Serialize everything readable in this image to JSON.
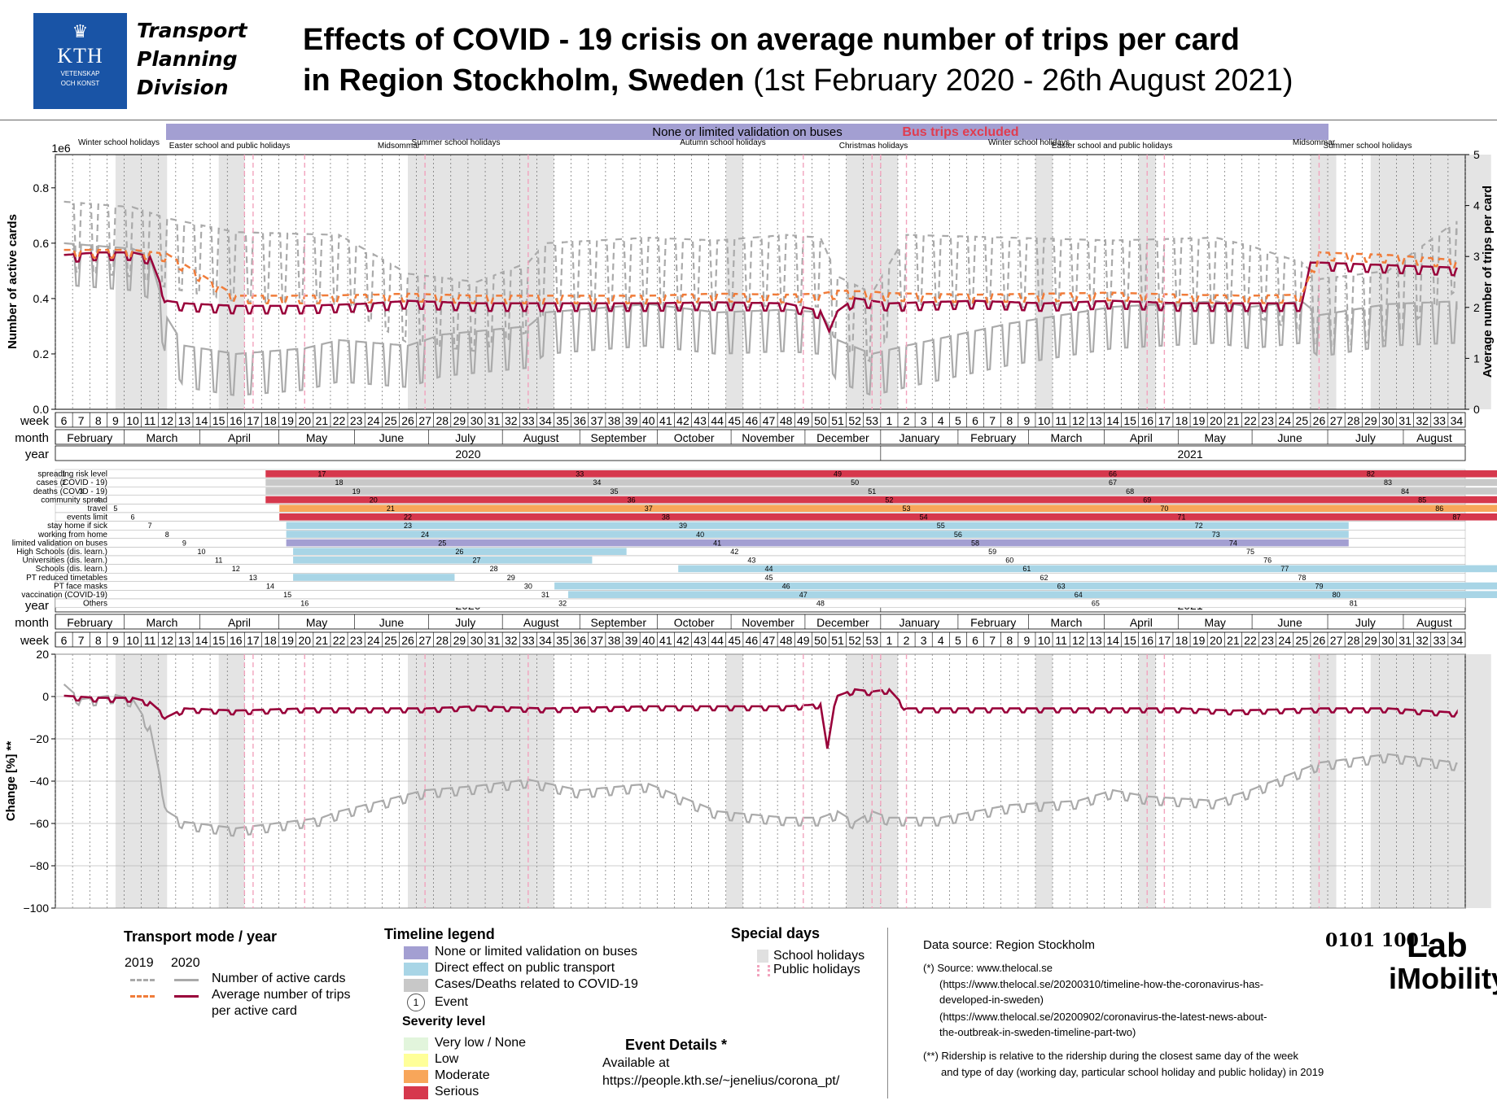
{
  "header": {
    "logo_text": "KTH",
    "logo_sub1": "VETENSKAP",
    "logo_sub2": "OCH KONST",
    "division_line1": "Transport",
    "division_line2": "Planning",
    "division_line3": "Division",
    "title_line1": "Effects of COVID - 19 crisis on average number of trips per card",
    "title_line2_bold": "in Region Stockholm, Sweden",
    "title_line2_dates": "(1st February 2020 - 26th August 2021)"
  },
  "banner": {
    "label": "None or limited validation on buses",
    "bus_excluded": "Bus trips excluded",
    "color": "#a39fd2",
    "alert_color": "#e03c4f"
  },
  "colors": {
    "cards_2020": "#aaaaaa",
    "cards_2019": "#aaaaaa",
    "trips_2020": "#99003a",
    "trips_2019": "#f07c3a",
    "school_holiday": "#e4e4e4",
    "public_holiday": "#f2a3bd",
    "limited_validation": "#a39fd2",
    "direct_effect": "#a8d5e6",
    "cases": "#c8c8c8",
    "very_low": "#e2f5dc",
    "low": "#ffff99",
    "moderate": "#f8a65a",
    "serious": "#d6384d"
  },
  "chart_data": [
    {
      "type": "line",
      "title": "",
      "ylabel": "Number of active cards",
      "ylabel_scale": "1e6",
      "ylim": [
        0,
        0.92
      ],
      "yticks": [
        "0.0",
        "0.2",
        "0.4",
        "0.6",
        "0.8"
      ],
      "y2label": "Average number of trips per card",
      "y2lim": [
        0,
        5
      ],
      "y2ticks": [
        "0",
        "1",
        "2",
        "3",
        "4",
        "5"
      ],
      "grid": false,
      "x_unit": "week",
      "series": [
        {
          "name": "Number of active cards",
          "year": "2020",
          "style": "solid",
          "axis": "left",
          "points": [
            [
              6,
              0.57
            ],
            [
              8,
              0.56
            ],
            [
              10,
              0.55
            ],
            [
              11,
              0.52
            ],
            [
              12,
              0.3
            ],
            [
              13,
              0.2
            ],
            [
              16,
              0.17
            ],
            [
              20,
              0.19
            ],
            [
              22,
              0.22
            ],
            [
              26,
              0.2
            ],
            [
              28,
              0.24
            ],
            [
              33,
              0.27
            ],
            [
              34,
              0.32
            ],
            [
              40,
              0.35
            ],
            [
              44,
              0.32
            ],
            [
              48,
              0.33
            ],
            [
              50,
              0.32
            ],
            [
              51,
              0.22
            ],
            [
              53,
              0.17
            ],
            [
              2,
              0.2
            ],
            [
              8,
              0.28
            ],
            [
              14,
              0.34
            ],
            [
              20,
              0.36
            ],
            [
              22,
              0.34
            ],
            [
              25,
              0.36
            ],
            [
              26,
              0.31
            ],
            [
              30,
              0.35
            ],
            [
              34,
              0.36
            ]
          ]
        },
        {
          "name": "Number of active cards",
          "year": "2019",
          "style": "dashed",
          "axis": "left",
          "points": [
            [
              6,
              0.7
            ],
            [
              8,
              0.69
            ],
            [
              10,
              0.68
            ],
            [
              12,
              0.64
            ],
            [
              16,
              0.59
            ],
            [
              22,
              0.58
            ],
            [
              26,
              0.44
            ],
            [
              30,
              0.41
            ],
            [
              33,
              0.48
            ],
            [
              34,
              0.55
            ],
            [
              40,
              0.57
            ],
            [
              44,
              0.56
            ],
            [
              48,
              0.58
            ],
            [
              50,
              0.57
            ],
            [
              51,
              0.43
            ],
            [
              53,
              0.37
            ],
            [
              2,
              0.58
            ],
            [
              8,
              0.57
            ],
            [
              14,
              0.56
            ],
            [
              20,
              0.57
            ],
            [
              22,
              0.54
            ],
            [
              25,
              0.48
            ],
            [
              26,
              0.42
            ],
            [
              30,
              0.45
            ],
            [
              34,
              0.63
            ]
          ]
        },
        {
          "name": "Average number of trips per card",
          "year": "2020",
          "style": "solid",
          "axis": "right",
          "points": [
            [
              6,
              3.0
            ],
            [
              8,
              3.05
            ],
            [
              10,
              3.05
            ],
            [
              11,
              2.97
            ],
            [
              12,
              2.1
            ],
            [
              13,
              2.05
            ],
            [
              16,
              2.0
            ],
            [
              20,
              2.0
            ],
            [
              24,
              2.05
            ],
            [
              26,
              2.1
            ],
            [
              30,
              2.05
            ],
            [
              34,
              2.05
            ],
            [
              40,
              2.05
            ],
            [
              44,
              2.07
            ],
            [
              48,
              2.05
            ],
            [
              50,
              1.9
            ],
            [
              50.5,
              1.5
            ],
            [
              51,
              1.9
            ],
            [
              52,
              2.15
            ],
            [
              53,
              2.1
            ],
            [
              1,
              2.05
            ],
            [
              6,
              2.1
            ],
            [
              10,
              2.05
            ],
            [
              14,
              2.1
            ],
            [
              18,
              2.05
            ],
            [
              22,
              2.05
            ],
            [
              25,
              2.05
            ],
            [
              25.5,
              2.85
            ],
            [
              26,
              2.85
            ],
            [
              30,
              2.8
            ],
            [
              34,
              2.75
            ]
          ]
        },
        {
          "name": "Average number of trips per card",
          "year": "2019",
          "style": "dashed",
          "axis": "right",
          "points": [
            [
              6,
              3.1
            ],
            [
              8,
              3.1
            ],
            [
              10,
              3.1
            ],
            [
              12,
              3.02
            ],
            [
              16,
              2.2
            ],
            [
              20,
              2.2
            ],
            [
              24,
              2.22
            ],
            [
              26,
              2.24
            ],
            [
              30,
              2.2
            ],
            [
              34,
              2.2
            ],
            [
              40,
              2.2
            ],
            [
              44,
              2.24
            ],
            [
              48,
              2.22
            ],
            [
              50,
              2.24
            ],
            [
              51,
              2.3
            ],
            [
              53,
              2.28
            ],
            [
              1,
              2.25
            ],
            [
              6,
              2.22
            ],
            [
              10,
              2.24
            ],
            [
              14,
              2.26
            ],
            [
              18,
              2.22
            ],
            [
              22,
              2.2
            ],
            [
              25,
              2.22
            ],
            [
              26,
              3.05
            ],
            [
              30,
              3.0
            ],
            [
              34,
              2.9
            ]
          ]
        }
      ],
      "period_annotations": [
        "Winter school holidays",
        "Easter school and public holidays",
        "Summer school holidays",
        "Midsommar",
        "Autumn school holidays",
        "Christmas holidays",
        "Winter school holidays",
        "Easter school and public holidays",
        "Midsommar",
        "Summer school holidays"
      ]
    },
    {
      "type": "timeline",
      "weeks": [
        "6",
        "7",
        "8",
        "9",
        "10",
        "11",
        "12",
        "13",
        "14",
        "15",
        "16",
        "17",
        "18",
        "19",
        "20",
        "21",
        "22",
        "23",
        "24",
        "25",
        "26",
        "27",
        "28",
        "29",
        "30",
        "31",
        "32",
        "33",
        "34",
        "35",
        "36",
        "37",
        "38",
        "39",
        "40",
        "41",
        "42",
        "43",
        "44",
        "45",
        "46",
        "47",
        "48",
        "49",
        "50",
        "51",
        "52",
        "53",
        "1",
        "2",
        "3",
        "4",
        "5",
        "6",
        "7",
        "8",
        "9",
        "10",
        "11",
        "12",
        "13",
        "14",
        "15",
        "16",
        "17",
        "18",
        "19",
        "20",
        "21",
        "22",
        "23",
        "24",
        "25",
        "26",
        "27",
        "28",
        "29",
        "30",
        "31",
        "32",
        "33",
        "34"
      ],
      "months": [
        "February",
        "March",
        "April",
        "May",
        "June",
        "July",
        "August",
        "September",
        "October",
        "November",
        "December",
        "January",
        "February",
        "March",
        "April",
        "May",
        "June",
        "July",
        "August"
      ],
      "years": [
        "2020",
        "2021"
      ],
      "row_labels": {
        "week": "week",
        "month": "month",
        "year": "year"
      },
      "categories": [
        "spreading risk level",
        "cases (COVID - 19)",
        "deaths (COVID - 19)",
        "community spread",
        "travel",
        "events limit",
        "stay home if sick",
        "working from home",
        "limited validation on buses",
        "High Schools (dis. learn.)",
        "Universities (dis. learn.)",
        "Schools (dis. learn.)",
        "PT reduced timetables",
        "PT face masks",
        "vaccination (COVID-19)",
        "Others"
      ],
      "event_ids": [
        "1",
        "2",
        "3",
        "4",
        "5",
        "6",
        "7",
        "8",
        "9",
        "10",
        "11",
        "12",
        "13",
        "14",
        "15",
        "16",
        "17",
        "18",
        "19",
        "20",
        "21",
        "22",
        "23",
        "24",
        "25",
        "26",
        "27",
        "28",
        "29",
        "30",
        "31",
        "32",
        "33",
        "34",
        "35",
        "36",
        "37",
        "38",
        "39",
        "40",
        "41",
        "42",
        "43",
        "44",
        "45",
        "46",
        "47",
        "48",
        "49",
        "50",
        "51",
        "52",
        "53",
        "54",
        "55",
        "56",
        "58",
        "59",
        "60",
        "61",
        "62",
        "63",
        "64",
        "65",
        "66",
        "67",
        "68",
        "69",
        "70",
        "71",
        "72",
        "73",
        "74",
        "75",
        "76",
        "77",
        "78",
        "79",
        "80",
        "81",
        "82",
        "83",
        "84",
        "85",
        "86",
        "87"
      ]
    },
    {
      "type": "line",
      "title": "",
      "ylabel": "Change [%] **",
      "ylim": [
        -100,
        20
      ],
      "yticks": [
        "20",
        "0",
        "−20",
        "−40",
        "−60",
        "−80",
        "−100"
      ],
      "grid": true,
      "x_unit": "week",
      "series": [
        {
          "name": "Number of active cards",
          "year": "2020",
          "style": "solid",
          "points": [
            [
              6,
              5
            ],
            [
              7,
              -2
            ],
            [
              9,
              0
            ],
            [
              10,
              -2
            ],
            [
              11,
              -15
            ],
            [
              12,
              -55
            ],
            [
              13,
              -60
            ],
            [
              16,
              -63
            ],
            [
              19,
              -60
            ],
            [
              21,
              -58
            ],
            [
              22,
              -55
            ],
            [
              27,
              -45
            ],
            [
              30,
              -43
            ],
            [
              33,
              -40
            ],
            [
              36,
              -45
            ],
            [
              40,
              -42
            ],
            [
              44,
              -55
            ],
            [
              48,
              -58
            ],
            [
              50,
              -58
            ],
            [
              51,
              -55
            ],
            [
              52,
              -60
            ],
            [
              53,
              -55
            ],
            [
              1,
              -58
            ],
            [
              4,
              -58
            ],
            [
              8,
              -52
            ],
            [
              12,
              -50
            ],
            [
              14,
              -45
            ],
            [
              16,
              -48
            ],
            [
              20,
              -50
            ],
            [
              22,
              -45
            ],
            [
              26,
              -32
            ],
            [
              30,
              -28
            ],
            [
              34,
              -32
            ]
          ]
        },
        {
          "name": "Average number of trips per card",
          "year": "2020",
          "style": "solid",
          "points": [
            [
              6,
              0
            ],
            [
              8,
              -1
            ],
            [
              10,
              -1
            ],
            [
              11,
              -3
            ],
            [
              12,
              -10
            ],
            [
              13,
              -6
            ],
            [
              16,
              -7
            ],
            [
              20,
              -6
            ],
            [
              22,
              -6
            ],
            [
              27,
              -6
            ],
            [
              30,
              -5
            ],
            [
              34,
              -6
            ],
            [
              40,
              -5
            ],
            [
              44,
              -5
            ],
            [
              48,
              -5
            ],
            [
              50,
              -4
            ],
            [
              50.4,
              -25
            ],
            [
              50.8,
              -5
            ],
            [
              51,
              0
            ],
            [
              52,
              3
            ],
            [
              53,
              2
            ],
            [
              1,
              3
            ],
            [
              2,
              -6
            ],
            [
              6,
              -6
            ],
            [
              10,
              -6
            ],
            [
              14,
              -6
            ],
            [
              18,
              -6
            ],
            [
              21,
              -7
            ],
            [
              26,
              -6
            ],
            [
              30,
              -6
            ],
            [
              34,
              -8
            ]
          ]
        }
      ]
    }
  ],
  "legend": {
    "transport_title": "Transport mode / year",
    "year_2019": "2019",
    "year_2020": "2020",
    "cards_label": "Number of active cards",
    "trips_label_1": "Average number of trips",
    "trips_label_2": "per active card",
    "timeline_title": "Timeline legend",
    "tl_items": [
      "None or limited validation on buses",
      "Direct effect on public transport",
      "Cases/Deaths related to COVID-19"
    ],
    "event_label": "Event",
    "event_number": "1",
    "severity_title": "Severity level",
    "severity_items": [
      "Very low / None",
      "Low",
      "Moderate",
      "Serious"
    ],
    "event_details_title": "Event Details *",
    "event_details_1": "Available at",
    "event_details_2": "https://people.kth.se/~jenelius/corona_pt/",
    "special_title": "Special days",
    "school_holidays": "School holidays",
    "public_holidays": "Public holidays",
    "data_source": "Data source: Region Stockholm",
    "source_note_1": "(*) Source: www.thelocal.se",
    "source_note_2": "(https://www.thelocal.se/20200310/timeline-how-the-coronavirus-has-",
    "source_note_3": "developed-in-sweden)",
    "source_note_4": "(https://www.thelocal.se/20200902/coronavirus-the-latest-news-about-",
    "source_note_5": "the-outbreak-in-sweden-timeline-part-two)",
    "ridership_note_1": "(**) Ridership is relative to the ridership during the closest same day of the week",
    "ridership_note_2": "and type of day (working day, particular school holiday and public holiday) in 2019",
    "brand_bits": "0101 1001",
    "brand_lab": "Lab",
    "brand_imobility": "iMobility"
  }
}
